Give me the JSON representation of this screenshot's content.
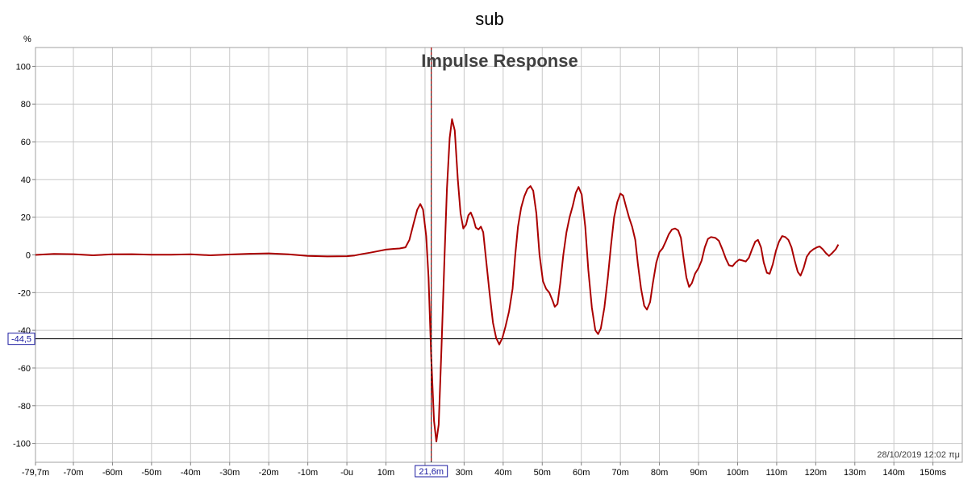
{
  "chart_data": {
    "type": "line",
    "title": "sub",
    "plot_title": "Impulse Response",
    "ylabel": "%",
    "xlabel": "",
    "xlim": [
      -79.7,
      157.5
    ],
    "ylim": [
      -110,
      110
    ],
    "grid": true,
    "y_ticks": [
      -100,
      -80,
      -60,
      -40,
      -20,
      0,
      20,
      40,
      60,
      80,
      100
    ],
    "y_tick_labels": [
      "-100",
      "-80",
      "-60",
      "",
      "-20",
      "0",
      "20",
      "40",
      "60",
      "80",
      "100"
    ],
    "y_tick_partial_label": "-40",
    "x_ticks": [
      -79.7,
      -70,
      -60,
      -50,
      -40,
      -30,
      -20,
      -10,
      0,
      10,
      20,
      30,
      40,
      50,
      60,
      70,
      80,
      90,
      100,
      110,
      120,
      130,
      140,
      150
    ],
    "x_tick_labels": [
      "-79,7m",
      "-70m",
      "-60m",
      "-50m",
      "-40m",
      "-30m",
      "-20m",
      "-10m",
      "-0u",
      "10m",
      "",
      "30m",
      "40m",
      "50m",
      "60m",
      "70m",
      "80m",
      "90m",
      "100m",
      "110m",
      "120m",
      "130m",
      "140m",
      "150ms"
    ],
    "cursor": {
      "x": 21.6,
      "x_label": "21,6m"
    },
    "h_marker": {
      "y": -44.5,
      "y_label": "-44,5"
    },
    "timestamp": "28/10/2019 12:02 πμ",
    "series": [
      {
        "color": "#aa0000",
        "points": [
          [
            -79.7,
            0
          ],
          [
            -75,
            0.5
          ],
          [
            -70,
            0.4
          ],
          [
            -65,
            -0.2
          ],
          [
            -60,
            0.3
          ],
          [
            -55,
            0.4
          ],
          [
            -50,
            0.1
          ],
          [
            -45,
            0.1
          ],
          [
            -40,
            0.3
          ],
          [
            -35,
            -0.2
          ],
          [
            -30,
            0.2
          ],
          [
            -25,
            0.6
          ],
          [
            -20,
            0.8
          ],
          [
            -15,
            0.3
          ],
          [
            -10,
            -0.5
          ],
          [
            -5,
            -0.8
          ],
          [
            0,
            -0.7
          ],
          [
            2,
            -0.3
          ],
          [
            4,
            0.5
          ],
          [
            6,
            1.2
          ],
          [
            8,
            2.0
          ],
          [
            10,
            2.8
          ],
          [
            12,
            3.2
          ],
          [
            13.5,
            3.4
          ],
          [
            15,
            4
          ],
          [
            16,
            8
          ],
          [
            17,
            16
          ],
          [
            18,
            24
          ],
          [
            18.8,
            27
          ],
          [
            19.5,
            24
          ],
          [
            20.3,
            10
          ],
          [
            20.9,
            -12
          ],
          [
            21.6,
            -55
          ],
          [
            22.3,
            -88
          ],
          [
            22.9,
            -99
          ],
          [
            23.5,
            -90
          ],
          [
            24.2,
            -50
          ],
          [
            25,
            0
          ],
          [
            25.6,
            35
          ],
          [
            26.3,
            62
          ],
          [
            26.9,
            72
          ],
          [
            27.6,
            66
          ],
          [
            28.4,
            40
          ],
          [
            29.1,
            22
          ],
          [
            29.8,
            14
          ],
          [
            30.5,
            16
          ],
          [
            31.1,
            21
          ],
          [
            31.7,
            22.5
          ],
          [
            32.4,
            19
          ],
          [
            33,
            14.5
          ],
          [
            33.7,
            13.5
          ],
          [
            34.3,
            15
          ],
          [
            34.9,
            12
          ],
          [
            35.6,
            -2
          ],
          [
            36.5,
            -20
          ],
          [
            37.4,
            -36
          ],
          [
            38.2,
            -44
          ],
          [
            39,
            -47.5
          ],
          [
            39.8,
            -44
          ],
          [
            40.6,
            -38
          ],
          [
            41.5,
            -30
          ],
          [
            42.4,
            -18
          ],
          [
            43.1,
            0
          ],
          [
            43.8,
            15
          ],
          [
            44.6,
            25
          ],
          [
            45.4,
            31
          ],
          [
            46.2,
            35
          ],
          [
            47,
            36.5
          ],
          [
            47.7,
            34
          ],
          [
            48.5,
            22
          ],
          [
            49.3,
            0
          ],
          [
            50.2,
            -14
          ],
          [
            51,
            -18
          ],
          [
            51.8,
            -20
          ],
          [
            52.6,
            -24
          ],
          [
            53.2,
            -27.5
          ],
          [
            53.9,
            -26
          ],
          [
            54.6,
            -15
          ],
          [
            55.4,
            0
          ],
          [
            56.2,
            12
          ],
          [
            57,
            20
          ],
          [
            57.8,
            26
          ],
          [
            58.6,
            33
          ],
          [
            59.3,
            36
          ],
          [
            60.1,
            32
          ],
          [
            61,
            15
          ],
          [
            61.8,
            -8
          ],
          [
            62.7,
            -28
          ],
          [
            63.6,
            -40
          ],
          [
            64.3,
            -42
          ],
          [
            65,
            -39
          ],
          [
            65.9,
            -28
          ],
          [
            66.8,
            -12
          ],
          [
            67.6,
            5
          ],
          [
            68.4,
            20
          ],
          [
            69.2,
            28
          ],
          [
            70,
            32.5
          ],
          [
            70.7,
            31.5
          ],
          [
            71.4,
            26
          ],
          [
            72.2,
            20
          ],
          [
            73,
            15
          ],
          [
            73.8,
            8
          ],
          [
            74.5,
            -5
          ],
          [
            75.3,
            -18
          ],
          [
            76.1,
            -27
          ],
          [
            76.8,
            -29
          ],
          [
            77.6,
            -25
          ],
          [
            78.3,
            -15
          ],
          [
            79.2,
            -4
          ],
          [
            80,
            1.5
          ],
          [
            80.8,
            3.5
          ],
          [
            81.6,
            7
          ],
          [
            82.4,
            11
          ],
          [
            83.2,
            13.5
          ],
          [
            84,
            14
          ],
          [
            84.8,
            13
          ],
          [
            85.5,
            9
          ],
          [
            86.2,
            -2
          ],
          [
            86.9,
            -12
          ],
          [
            87.6,
            -17
          ],
          [
            88.3,
            -15
          ],
          [
            89.1,
            -10
          ],
          [
            90,
            -7
          ],
          [
            90.8,
            -3
          ],
          [
            91.6,
            4
          ],
          [
            92.4,
            8.5
          ],
          [
            93.2,
            9.5
          ],
          [
            94.3,
            9
          ],
          [
            95.2,
            7.5
          ],
          [
            96.1,
            3
          ],
          [
            97,
            -2
          ],
          [
            97.8,
            -5.5
          ],
          [
            98.7,
            -6
          ],
          [
            99.5,
            -4
          ],
          [
            100.4,
            -2.5
          ],
          [
            101.3,
            -3
          ],
          [
            102.1,
            -3.5
          ],
          [
            102.9,
            -1.5
          ],
          [
            103.7,
            3
          ],
          [
            104.5,
            7
          ],
          [
            105.2,
            8
          ],
          [
            106,
            4
          ],
          [
            106.7,
            -4
          ],
          [
            107.5,
            -9.5
          ],
          [
            108.2,
            -10
          ],
          [
            109,
            -5
          ],
          [
            109.8,
            2
          ],
          [
            110.6,
            7
          ],
          [
            111.4,
            10
          ],
          [
            112.2,
            9.5
          ],
          [
            113,
            8
          ],
          [
            113.8,
            4
          ],
          [
            114.6,
            -3
          ],
          [
            115.4,
            -9
          ],
          [
            116.1,
            -11
          ],
          [
            116.9,
            -7
          ],
          [
            117.7,
            -1
          ],
          [
            118.5,
            1.5
          ],
          [
            119.4,
            3
          ],
          [
            120.3,
            4
          ],
          [
            121,
            4.5
          ],
          [
            121.8,
            3
          ],
          [
            122.6,
            1
          ],
          [
            123.4,
            -0.5
          ],
          [
            124.2,
            1
          ],
          [
            125.1,
            3
          ],
          [
            125.8,
            5.5
          ]
        ]
      }
    ]
  }
}
